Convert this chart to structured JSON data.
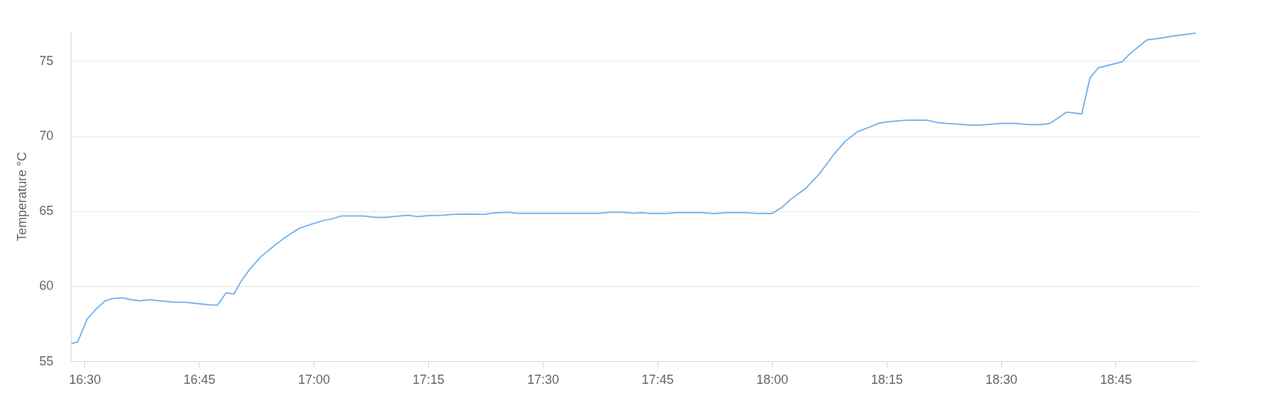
{
  "chart_data": {
    "type": "line",
    "ylabel": "Temperature °C",
    "x": [
      16.473,
      16.485,
      16.506,
      16.523,
      16.545,
      16.562,
      16.582,
      16.602,
      16.621,
      16.641,
      16.664,
      16.697,
      16.72,
      16.743,
      16.769,
      16.79,
      16.809,
      16.826,
      16.843,
      16.861,
      16.885,
      16.908,
      16.932,
      16.968,
      17.0,
      17.022,
      17.043,
      17.06,
      17.081,
      17.109,
      17.136,
      17.157,
      17.179,
      17.206,
      17.228,
      17.25,
      17.282,
      17.303,
      17.335,
      17.372,
      17.393,
      17.425,
      17.446,
      17.483,
      17.536,
      17.588,
      17.625,
      17.646,
      17.677,
      17.698,
      17.714,
      17.734,
      17.766,
      17.792,
      17.849,
      17.875,
      17.901,
      17.943,
      17.969,
      18.0,
      18.021,
      18.041,
      18.073,
      18.104,
      18.135,
      18.161,
      18.187,
      18.213,
      18.233,
      18.249,
      18.297,
      18.338,
      18.362,
      18.379,
      18.392,
      18.433,
      18.454,
      18.501,
      18.532,
      18.558,
      18.589,
      18.607,
      18.643,
      18.676,
      18.694,
      18.712,
      18.738,
      18.764,
      18.777,
      18.795,
      18.818,
      18.849,
      18.872,
      18.893,
      18.924
    ],
    "series": [
      {
        "color": "#7cb5ec",
        "values": [
          56.19,
          56.28,
          57.82,
          58.4,
          59.03,
          59.18,
          59.23,
          59.1,
          59.03,
          59.1,
          59.03,
          58.93,
          58.93,
          58.85,
          58.77,
          58.73,
          59.56,
          59.48,
          60.39,
          61.14,
          61.97,
          62.55,
          63.13,
          63.85,
          64.18,
          64.38,
          64.51,
          64.68,
          64.68,
          64.68,
          64.59,
          64.59,
          64.66,
          64.73,
          64.63,
          64.71,
          64.73,
          64.79,
          64.81,
          64.79,
          64.88,
          64.93,
          64.86,
          64.86,
          64.86,
          64.86,
          64.86,
          64.93,
          64.93,
          64.86,
          64.9,
          64.84,
          64.84,
          64.91,
          64.91,
          64.83,
          64.91,
          64.91,
          64.84,
          64.84,
          65.24,
          65.79,
          66.5,
          67.5,
          68.78,
          69.69,
          70.3,
          70.6,
          70.85,
          70.95,
          71.07,
          71.07,
          70.9,
          70.85,
          70.83,
          70.73,
          70.73,
          70.85,
          70.85,
          70.77,
          70.77,
          70.85,
          71.6,
          71.48,
          73.87,
          74.55,
          74.75,
          74.95,
          75.37,
          75.83,
          76.41,
          76.53,
          76.66,
          76.74,
          76.86
        ]
      }
    ],
    "xlim": [
      16.47,
      18.93
    ],
    "ylim": [
      55,
      77
    ],
    "xticks": [
      {
        "value": 16.5,
        "label": "16:30"
      },
      {
        "value": 16.75,
        "label": "16:45"
      },
      {
        "value": 17,
        "label": "17:00"
      },
      {
        "value": 17.25,
        "label": "17:15"
      },
      {
        "value": 17.5,
        "label": "17:30"
      },
      {
        "value": 17.75,
        "label": "17:45"
      },
      {
        "value": 18,
        "label": "18:00"
      },
      {
        "value": 18.25,
        "label": "18:15"
      },
      {
        "value": 18.5,
        "label": "18:30"
      },
      {
        "value": 18.75,
        "label": "18:45"
      }
    ],
    "yticks": [
      55,
      60,
      65,
      70,
      75
    ],
    "grid": "y",
    "marker": "none",
    "line_style": "solid"
  }
}
